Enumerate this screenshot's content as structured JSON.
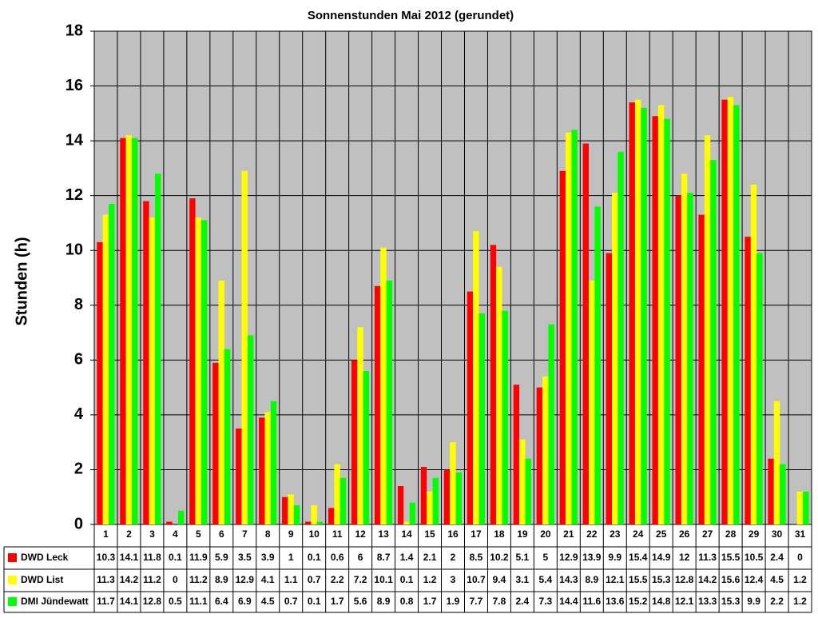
{
  "chart_data": {
    "type": "bar",
    "title": "Sonnenstunden Mai 2012 (gerundet)",
    "y_label": "Stunden (h)",
    "categories": [
      "1",
      "2",
      "3",
      "4",
      "5",
      "6",
      "7",
      "8",
      "9",
      "10",
      "11",
      "12",
      "13",
      "14",
      "15",
      "16",
      "17",
      "18",
      "19",
      "20",
      "21",
      "22",
      "23",
      "24",
      "25",
      "26",
      "27",
      "28",
      "29",
      "30",
      "31"
    ],
    "series": [
      {
        "name": "DWD Leck",
        "color": "#ff0000",
        "values": [
          10.3,
          14.1,
          11.8,
          0.1,
          11.9,
          5.9,
          3.5,
          3.9,
          1,
          0.1,
          0.6,
          6,
          8.7,
          1.4,
          2.1,
          2,
          8.5,
          10.2,
          5.1,
          5,
          12.9,
          13.9,
          9.9,
          15.4,
          14.9,
          12,
          11.3,
          15.5,
          10.5,
          2.4,
          0
        ]
      },
      {
        "name": "DWD List",
        "color": "#ffff00",
        "values": [
          11.3,
          14.2,
          11.2,
          0,
          11.2,
          8.9,
          12.9,
          4.1,
          1.1,
          0.7,
          2.2,
          7.2,
          10.1,
          0.1,
          1.2,
          3,
          10.7,
          9.4,
          3.1,
          5.4,
          14.3,
          8.9,
          12.1,
          15.5,
          15.3,
          12.8,
          14.2,
          15.6,
          12.4,
          4.5,
          1.2
        ]
      },
      {
        "name": "DMI Jündewatt",
        "color": "#00ff00",
        "values": [
          11.7,
          14.1,
          12.8,
          0.5,
          11.1,
          6.4,
          6.9,
          4.5,
          0.7,
          0.1,
          1.7,
          5.6,
          8.9,
          0.8,
          1.7,
          1.9,
          7.7,
          7.8,
          2.4,
          7.3,
          14.4,
          11.6,
          13.6,
          15.2,
          14.8,
          12.1,
          13.3,
          15.3,
          9.9,
          2.2,
          1.2
        ]
      }
    ],
    "ylim": [
      0,
      18
    ],
    "yticks": [
      0,
      2,
      4,
      6,
      8,
      10,
      12,
      14,
      16,
      18
    ],
    "grid": true,
    "plot_background": "#c0c0c0"
  }
}
